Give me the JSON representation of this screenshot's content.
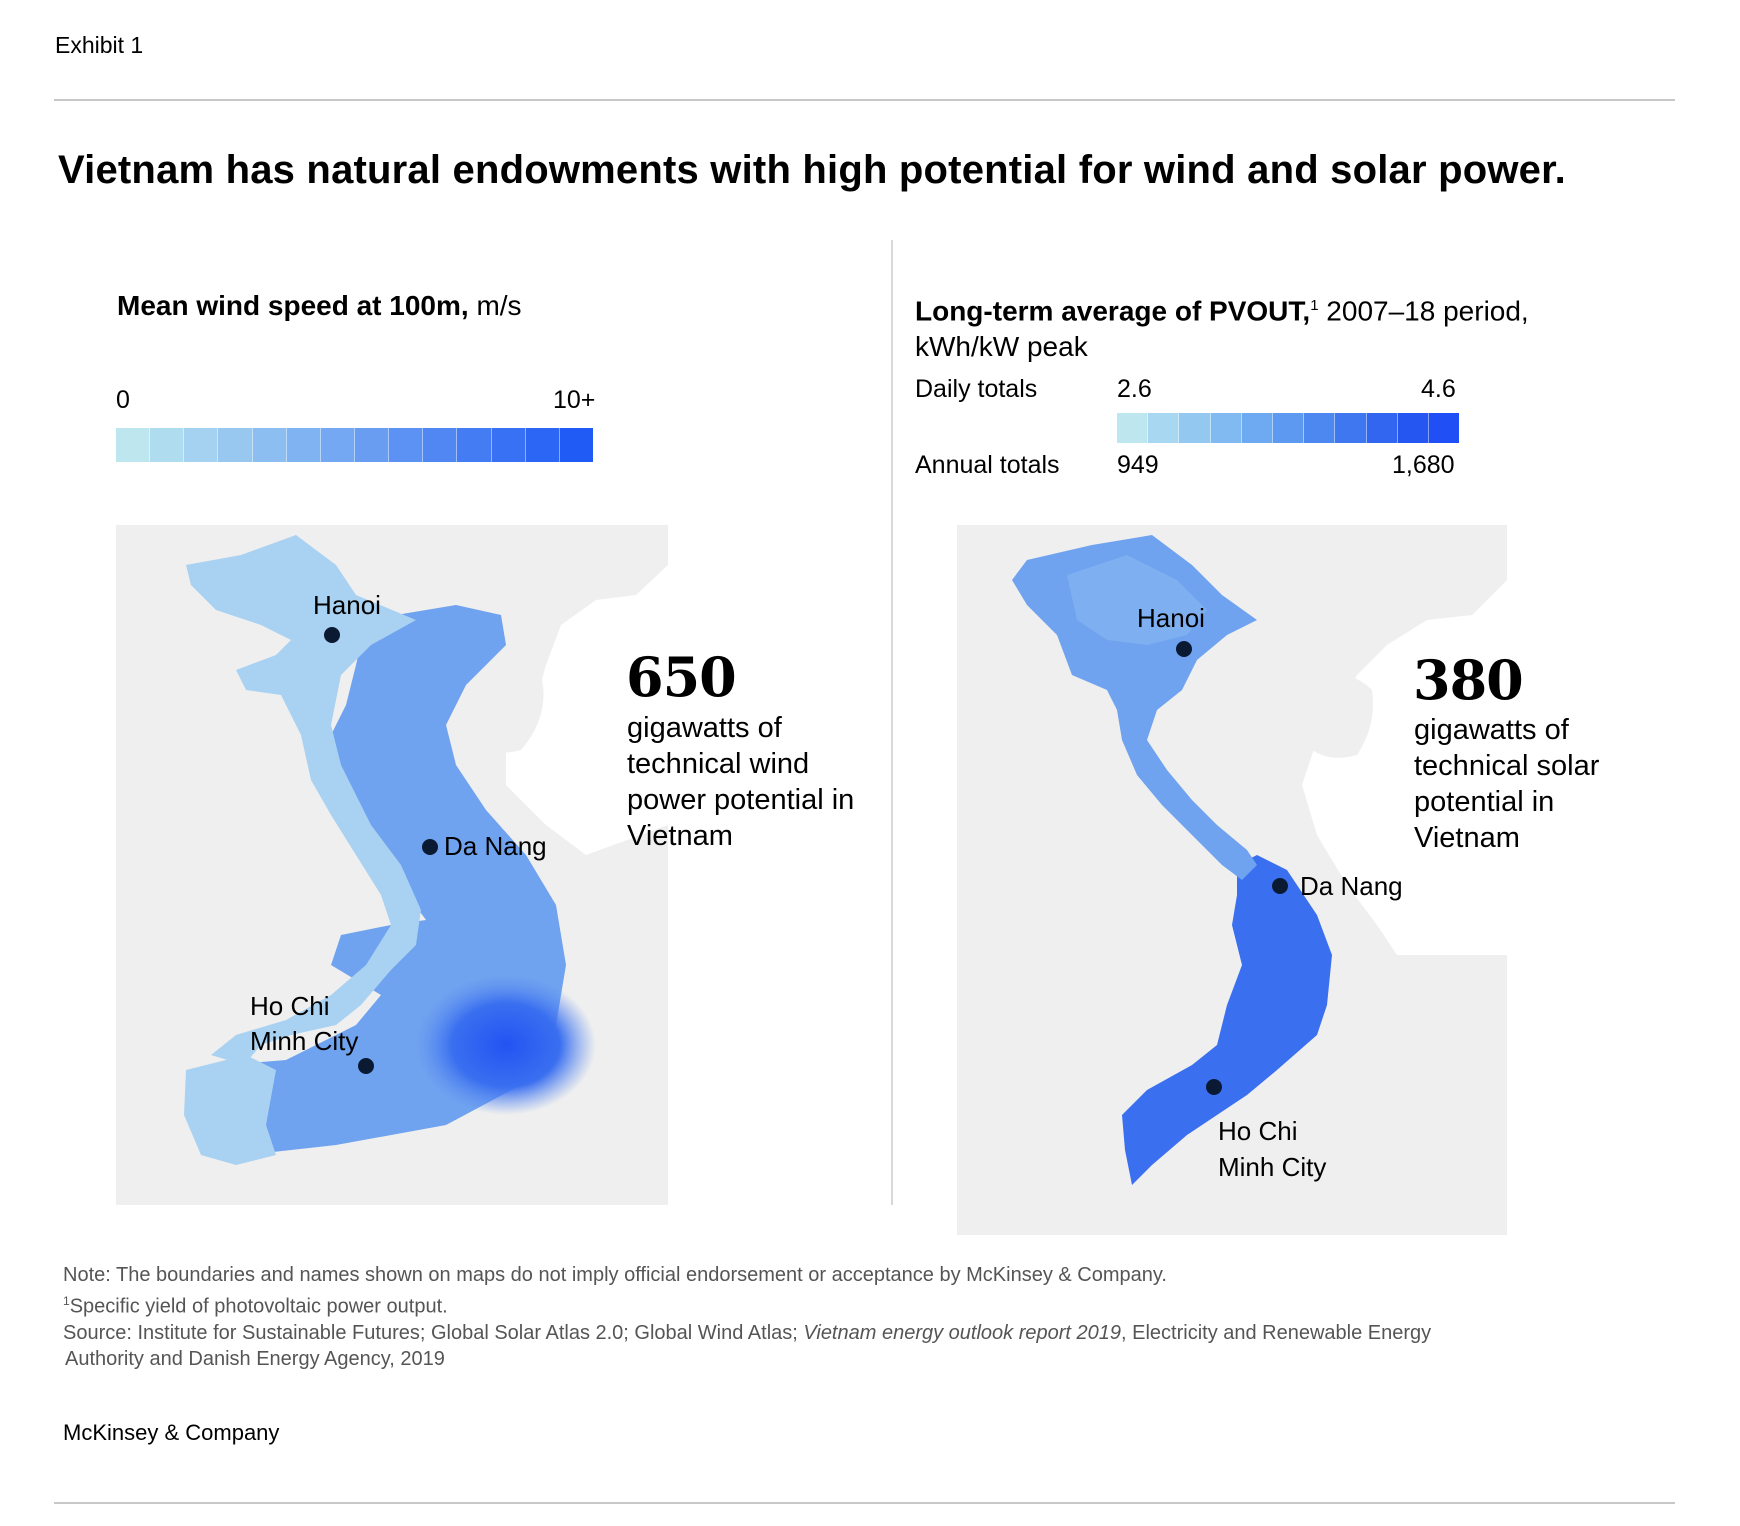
{
  "header": {
    "exhibit": "Exhibit 1",
    "title": "Vietnam has natural endowments with high potential for wind and solar power."
  },
  "wind_panel": {
    "title_bold": "Mean wind speed at 100m,",
    "title_unit": " m/s",
    "scale_min": "0",
    "scale_max": "10+",
    "scale_colors": [
      "#bde6ef",
      "#b0dcf0",
      "#a4d2f0",
      "#98c8f0",
      "#8cbef1",
      "#80b3f1",
      "#74a8f2",
      "#689df2",
      "#5c92f3",
      "#5087f3",
      "#447cf4",
      "#3871f4",
      "#2c66f5",
      "#205bf6"
    ],
    "big_number": "650",
    "caption": "gigawatts of technical wind power potential in Vietnam",
    "cities": [
      "Hanoi",
      "Da Nang",
      "Ho Chi",
      "Minh City"
    ]
  },
  "solar_panel": {
    "title_bold": "Long-term average of PVOUT,",
    "title_sup": "1",
    "title_rest": " 2007–18 period,",
    "title_line2": "kWh/kW peak",
    "daily_label": "Daily totals",
    "daily_min": "2.6",
    "daily_max": "4.6",
    "annual_label": "Annual  totals",
    "annual_min": "949",
    "annual_max": "1,680",
    "scale_colors": [
      "#bde6ef",
      "#a8d8f1",
      "#93c9f1",
      "#80baf1",
      "#6eaaf1",
      "#5d99f1",
      "#4d88f1",
      "#3f77f1",
      "#3266f1",
      "#2556f1",
      "#1f4ff5"
    ],
    "big_number": "380",
    "caption": "gigawatts of technical solar potential in Vietnam",
    "cities": [
      "Hanoi",
      "Da Nang",
      "Ho Chi",
      "Minh City"
    ]
  },
  "colors": {
    "land_bg": "#efefef",
    "map_light": "#a9d1f1",
    "map_mid": "#6fa2ef",
    "map_dark": "#3a6ff0"
  },
  "footnotes": {
    "note": "Note: The boundaries and names shown on maps do not imply official endorsement or acceptance by McKinsey & Company.",
    "fn_sup": "1",
    "fn1": "Specific yield of photovoltaic power output.",
    "source_a": "Source: Institute for Sustainable Futures; Global Solar Atlas 2.0; Global Wind Atlas; ",
    "source_italic": "Vietnam energy outlook report 2019",
    "source_b": ", Electricity and Renewable Energy",
    "source_line2": "Authority and Danish Energy Agency, 2019"
  },
  "brand": "McKinsey & Company"
}
